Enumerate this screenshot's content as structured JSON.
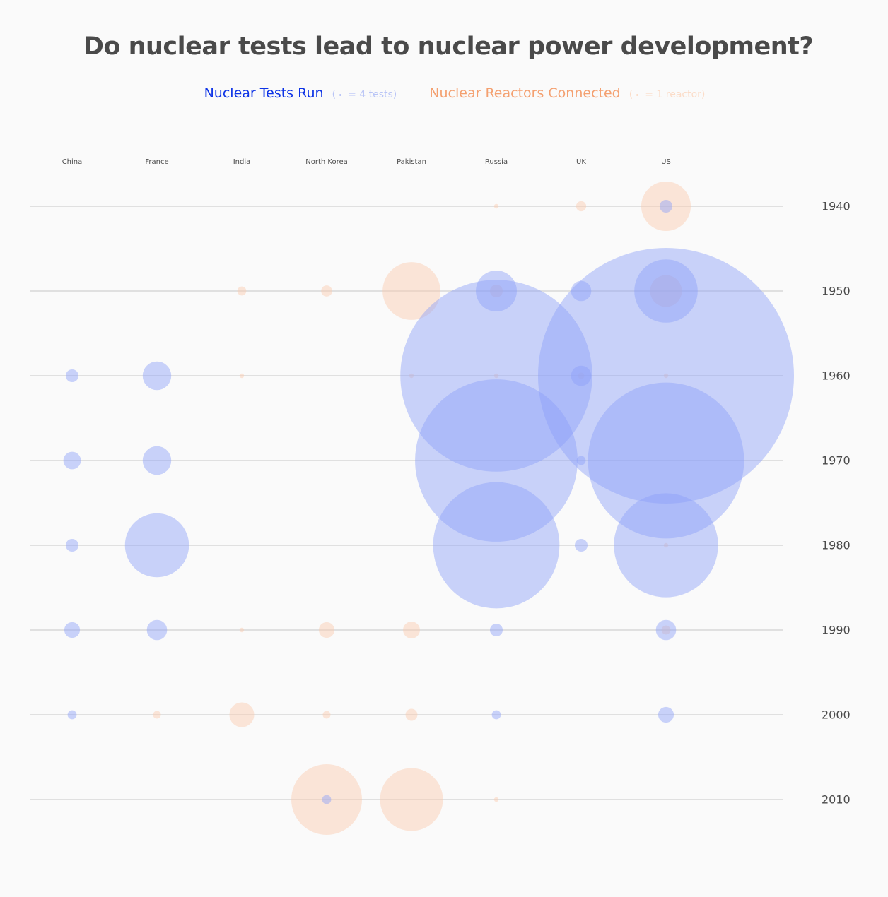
{
  "title": "Do nuclear tests lead to nuclear power development?",
  "legend": {
    "tests": {
      "label": "Nuclear Tests Run",
      "note_open": "(",
      "note_text": "= 4 tests)",
      "color": "#0d33e6"
    },
    "reactors": {
      "label": "Nuclear Reactors Connected",
      "note_open": "(",
      "note_text": "= 1 reactor)",
      "color": "#f4a070"
    }
  },
  "chart_data": {
    "type": "scatter",
    "title": "Do nuclear tests lead to nuclear power development?",
    "categories": [
      "China",
      "France",
      "India",
      "North Korea",
      "Pakistan",
      "Russia",
      "UK",
      "US"
    ],
    "decades": [
      "1940",
      "1950",
      "1960",
      "1970",
      "1980",
      "1990",
      "2000",
      "2010"
    ],
    "series": [
      {
        "name": "Nuclear Tests Run",
        "color": "#8c9ff8",
        "values": [
          [
            0,
            0,
            0,
            0,
            0,
            0,
            0,
            8
          ],
          [
            0,
            0,
            0,
            0,
            0,
            82,
            20,
            196
          ],
          [
            8,
            40,
            0,
            0,
            0,
            1800,
            20,
            3200
          ],
          [
            15,
            40,
            0,
            0,
            0,
            1290,
            4,
            1190
          ],
          [
            8,
            200,
            0,
            0,
            0,
            780,
            8,
            530
          ],
          [
            12,
            20,
            0,
            0,
            0,
            8,
            0,
            20
          ],
          [
            4,
            0,
            0,
            0,
            0,
            4,
            0,
            12
          ],
          [
            0,
            0,
            0,
            4,
            0,
            0,
            0,
            0
          ]
        ]
      },
      {
        "name": "Nuclear Reactors Connected",
        "color": "#fbc9ae",
        "values": [
          [
            0,
            0,
            0,
            0,
            0,
            1,
            5,
            120
          ],
          [
            0,
            0,
            4,
            6,
            163,
            8,
            0,
            49
          ],
          [
            0,
            0,
            1,
            0,
            1,
            1,
            2,
            1
          ],
          [
            0,
            0,
            0,
            0,
            0,
            0,
            0,
            0
          ],
          [
            0,
            0,
            0,
            0,
            0,
            0,
            0,
            1
          ],
          [
            0,
            0,
            1,
            12,
            14,
            0,
            0,
            4
          ],
          [
            0,
            3,
            30,
            3,
            7,
            0,
            0,
            0
          ],
          [
            0,
            0,
            0,
            244,
            193,
            1,
            0,
            0
          ]
        ]
      }
    ]
  }
}
